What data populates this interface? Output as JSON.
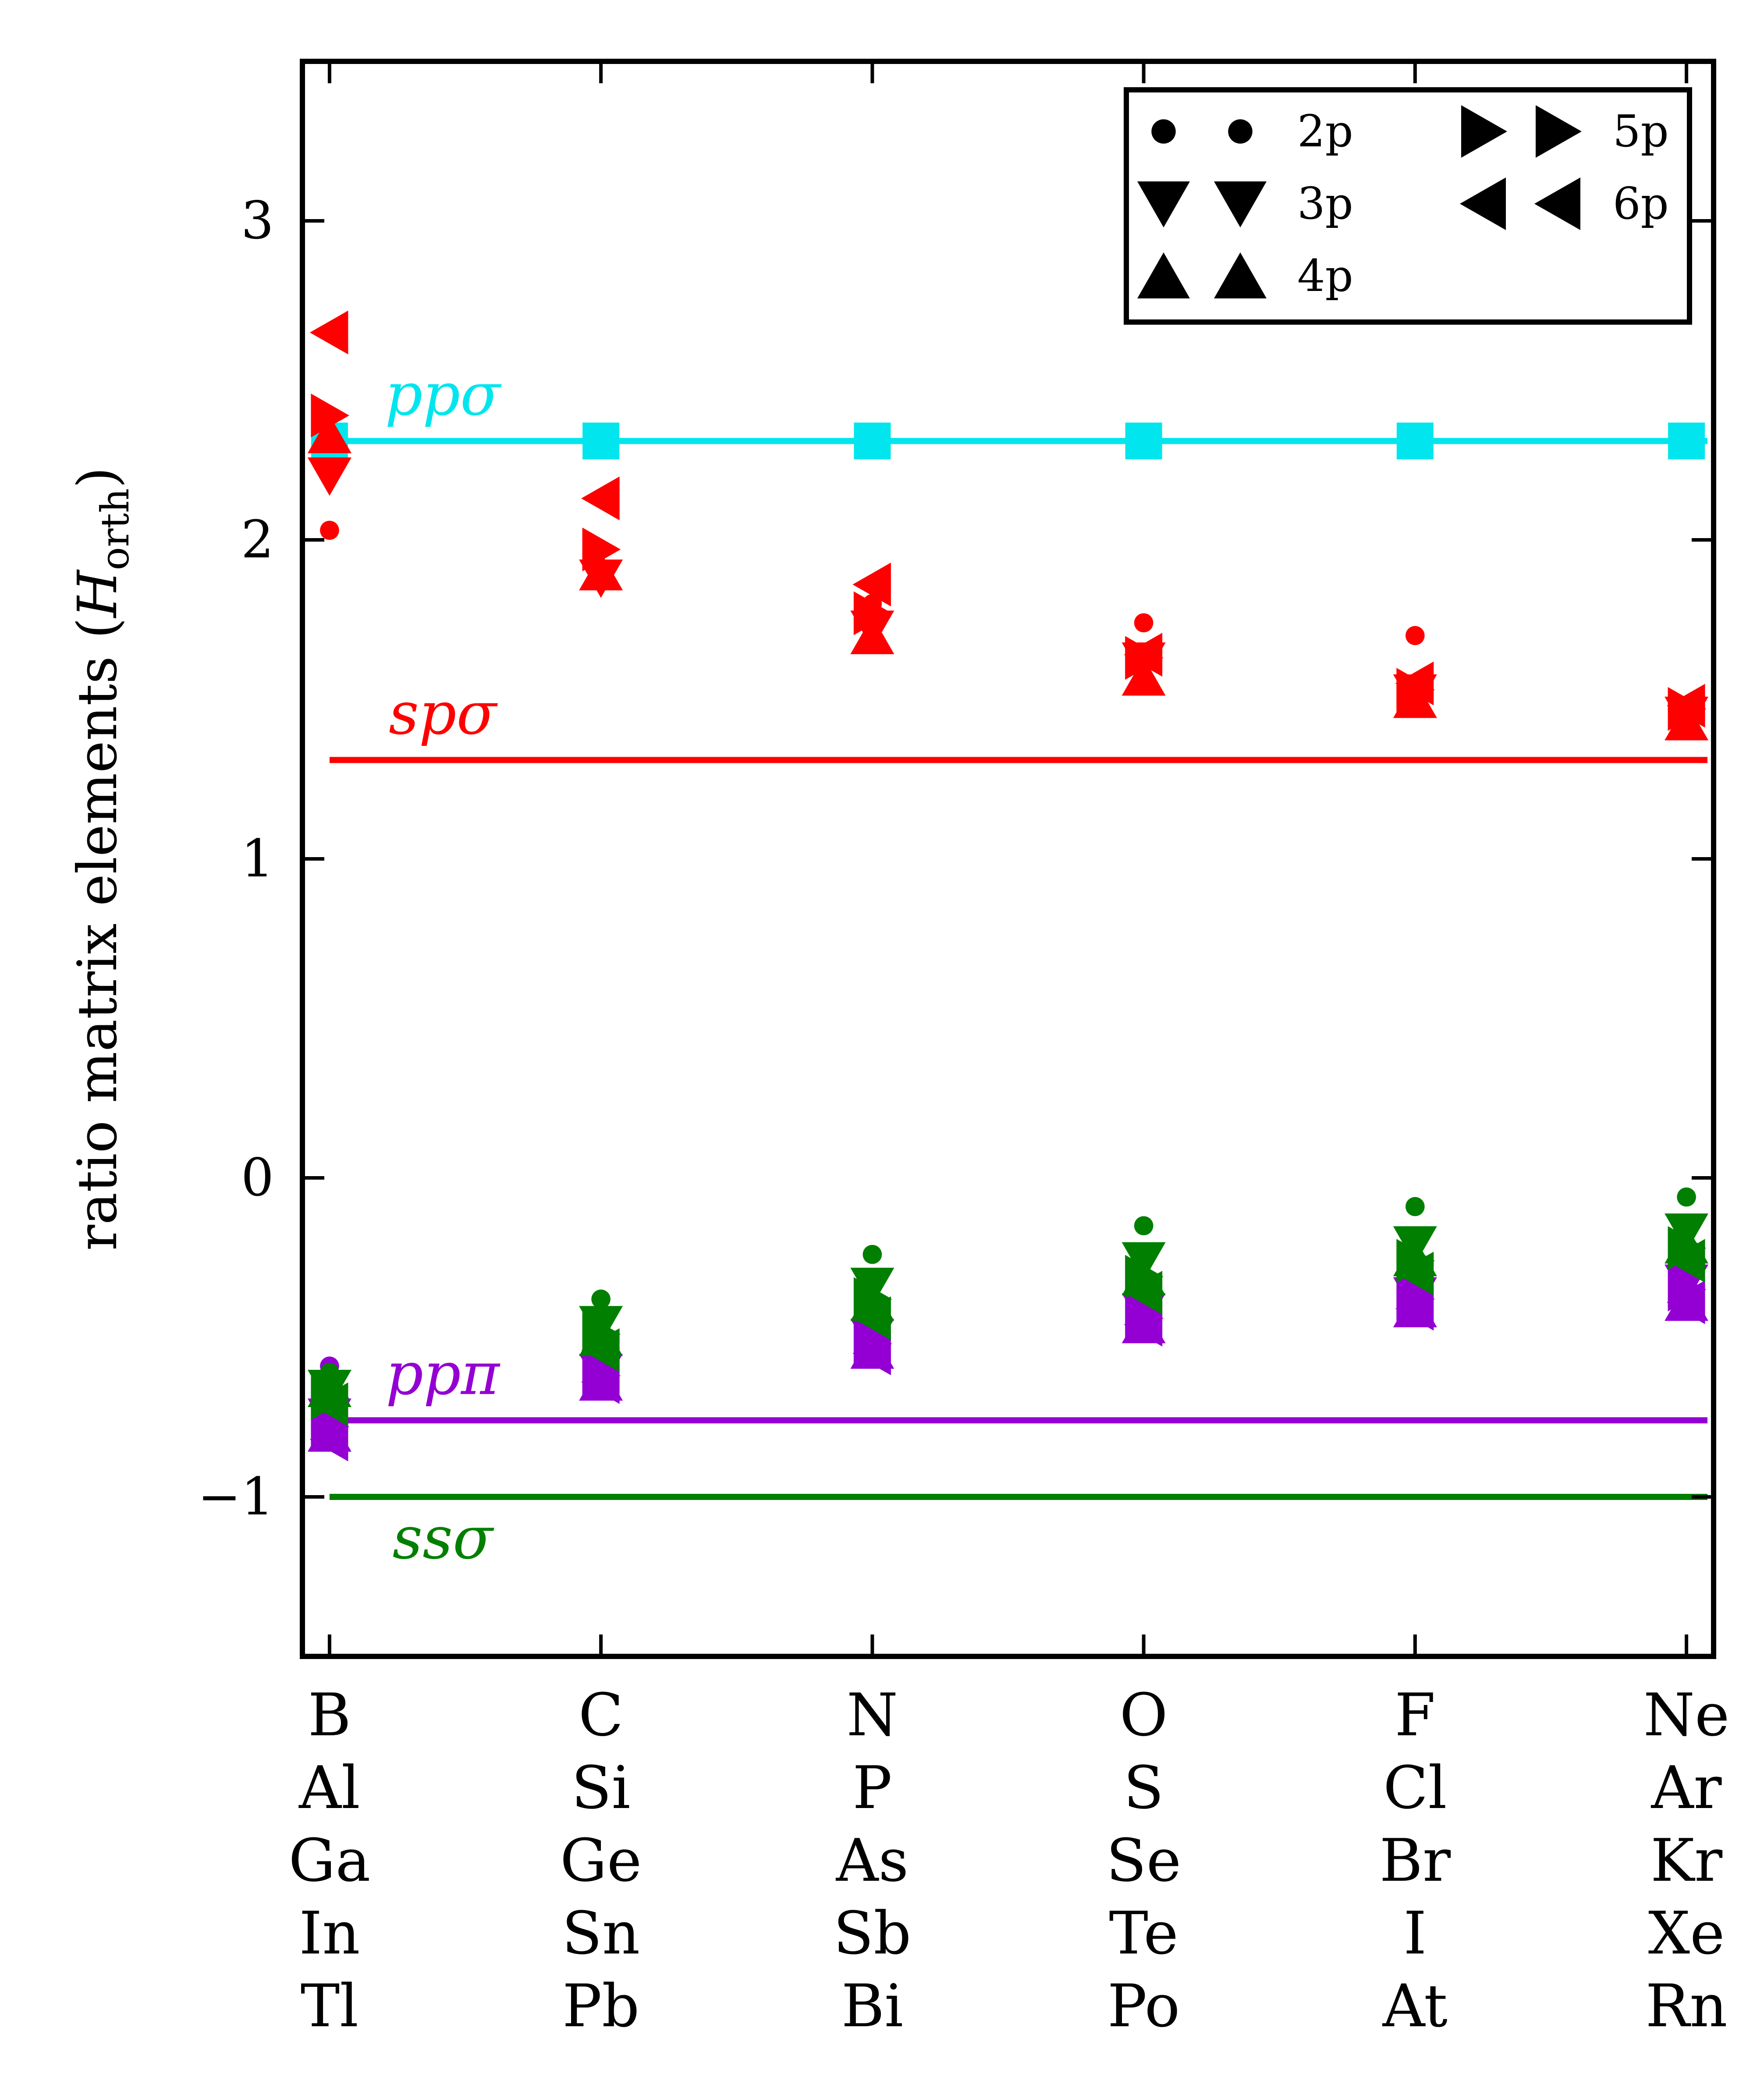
{
  "chart_data": {
    "type": "scatter",
    "title": "",
    "xlabel": "",
    "ylabel": "ratio matrix elements (H_orth)",
    "ylabel_main": "ratio matrix elements (",
    "ylabel_symbol": "H",
    "ylabel_subscript": "orth",
    "ylabel_close": ")",
    "ylim": [
      -1.5,
      3.5
    ],
    "xlim": [
      -0.1,
      5.1
    ],
    "y_ticks": [
      -1,
      0,
      1,
      2,
      3
    ],
    "y_tick_labels": [
      "−1",
      "0",
      "1",
      "2",
      "3"
    ],
    "x_ticks": [
      0,
      1,
      2,
      3,
      4,
      5
    ],
    "categories": [
      [
        "B",
        "Al",
        "Ga",
        "In",
        "Tl"
      ],
      [
        "C",
        "Si",
        "Ge",
        "Sn",
        "Pb"
      ],
      [
        "N",
        "P",
        "As",
        "Sb",
        "Bi"
      ],
      [
        "O",
        "S",
        "Se",
        "Te",
        "Po"
      ],
      [
        "F",
        "Cl",
        "Br",
        "I",
        "At"
      ],
      [
        "Ne",
        "Ar",
        "Kr",
        "Xe",
        "Rn"
      ]
    ],
    "grid": false,
    "legend_placement": "top-right",
    "legend": [
      {
        "label": "2p",
        "marker": "circle"
      },
      {
        "label": "3p",
        "marker": "triangle-down"
      },
      {
        "label": "4p",
        "marker": "triangle-up"
      },
      {
        "label": "5p",
        "marker": "triangle-right"
      },
      {
        "label": "6p",
        "marker": "triangle-left"
      }
    ],
    "reference_lines": [
      {
        "name": "ppσ",
        "value": 2.31,
        "color": "#00e5ee",
        "square_markers": true
      },
      {
        "name": "spσ",
        "value": 1.31,
        "color": "#ff0000"
      },
      {
        "name": "ppπ",
        "value": -0.76,
        "color": "#9400d3"
      },
      {
        "name": "ssσ",
        "value": -1.0,
        "color": "#007f00"
      }
    ],
    "series": [
      {
        "group": "spσ",
        "color": "#ff0000",
        "points": {
          "2p": [
            2.03,
            1.9,
            1.8,
            1.74,
            1.7,
            1.46
          ],
          "3p": [
            2.2,
            1.88,
            1.72,
            1.62,
            1.52,
            1.45
          ],
          "4p": [
            2.33,
            1.9,
            1.7,
            1.57,
            1.5,
            1.43
          ],
          "5p": [
            2.39,
            1.97,
            1.77,
            1.63,
            1.53,
            1.47
          ],
          "6p": [
            2.65,
            2.13,
            1.86,
            1.64,
            1.55,
            1.48
          ]
        }
      },
      {
        "group": "ppπ",
        "color": "#9400d3",
        "points": {
          "2p": [
            -0.59,
            -0.61,
            -0.52,
            -0.45,
            -0.4,
            -0.37
          ],
          "3p": [
            -0.75,
            -0.61,
            -0.5,
            -0.42,
            -0.37,
            -0.33
          ],
          "4p": [
            -0.8,
            -0.64,
            -0.54,
            -0.46,
            -0.41,
            -0.39
          ],
          "5p": [
            -0.78,
            -0.62,
            -0.52,
            -0.44,
            -0.38,
            -0.35
          ],
          "6p": [
            -0.82,
            -0.64,
            -0.55,
            -0.46,
            -0.41,
            -0.39
          ]
        }
      },
      {
        "group": "ssσ",
        "color": "#007f00",
        "points": {
          "2p": [
            -0.61,
            -0.38,
            -0.24,
            -0.15,
            -0.09,
            -0.06
          ],
          "3p": [
            -0.66,
            -0.46,
            -0.34,
            -0.26,
            -0.21,
            -0.17
          ],
          "4p": [
            -0.66,
            -0.5,
            -0.39,
            -0.31,
            -0.25,
            -0.21
          ],
          "5p": [
            -0.69,
            -0.49,
            -0.38,
            -0.31,
            -0.26,
            -0.22
          ],
          "6p": [
            -0.71,
            -0.54,
            -0.44,
            -0.36,
            -0.3,
            -0.26
          ]
        }
      }
    ]
  }
}
